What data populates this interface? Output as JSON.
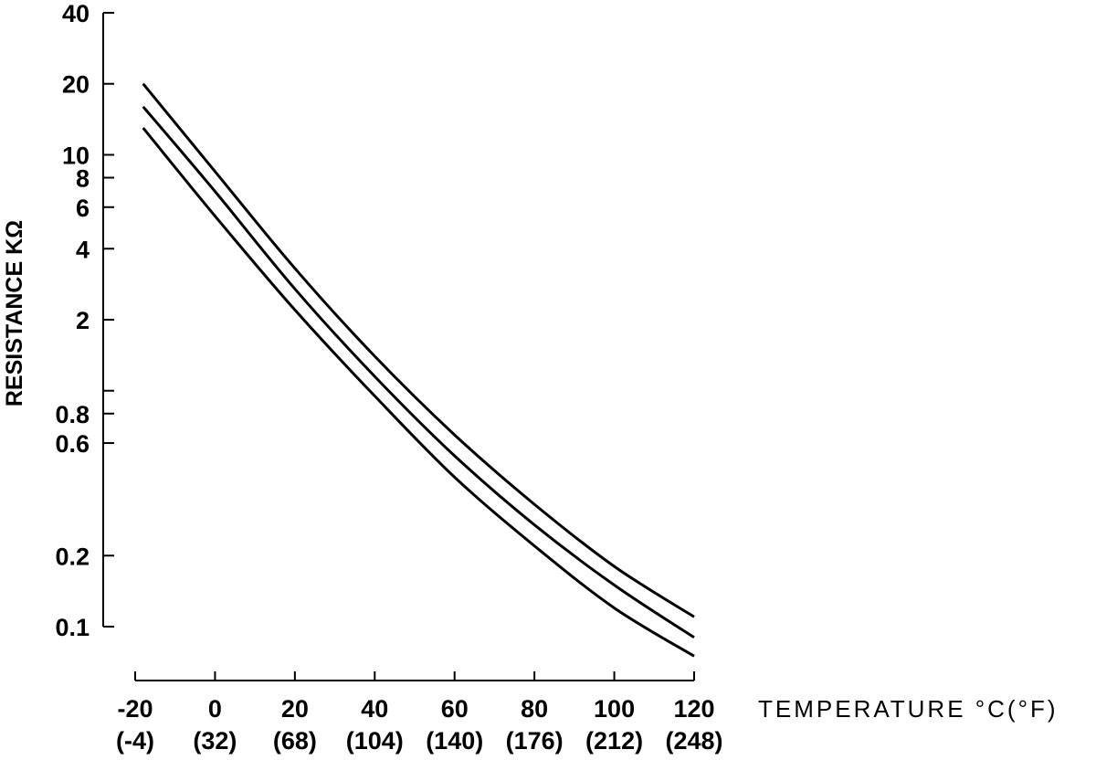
{
  "chart_data": {
    "type": "line",
    "title": "",
    "xlabel": "TEMPERATURE °C(°F)",
    "ylabel": "RESISTANCE KΩ",
    "x_scale": "linear",
    "y_scale": "log",
    "xlim": [
      -20,
      120
    ],
    "ylim": [
      0.1,
      40
    ],
    "x_ticks": [
      {
        "value": -20,
        "label": "-20",
        "sublabel": "(-4)"
      },
      {
        "value": 0,
        "label": "0",
        "sublabel": "(32)"
      },
      {
        "value": 20,
        "label": "20",
        "sublabel": "(68)"
      },
      {
        "value": 40,
        "label": "40",
        "sublabel": "(104)"
      },
      {
        "value": 60,
        "label": "60",
        "sublabel": "(140)"
      },
      {
        "value": 80,
        "label": "80",
        "sublabel": "(176)"
      },
      {
        "value": 100,
        "label": "100",
        "sublabel": "(212)"
      },
      {
        "value": 120,
        "label": "120",
        "sublabel": "(248)"
      }
    ],
    "y_ticks": [
      {
        "value": 40,
        "label": "40"
      },
      {
        "value": 20,
        "label": "20"
      },
      {
        "value": 10,
        "label": "10"
      },
      {
        "value": 8,
        "label": "8"
      },
      {
        "value": 6,
        "label": "6"
      },
      {
        "value": 4,
        "label": "4"
      },
      {
        "value": 2,
        "label": "2"
      },
      {
        "value": 1,
        "label": ""
      },
      {
        "value": 0.8,
        "label": "0.8"
      },
      {
        "value": 0.6,
        "label": "0.6"
      },
      {
        "value": 0.2,
        "label": "0.2"
      },
      {
        "value": 0.1,
        "label": "0.1"
      }
    ],
    "grid": false,
    "legend": "none",
    "series": [
      {
        "x": [
          -18,
          0,
          20,
          40,
          60,
          80,
          100,
          120
        ],
        "y": [
          20,
          8.5,
          3.3,
          1.4,
          0.65,
          0.33,
          0.18,
          0.11
        ]
      },
      {
        "x": [
          -18,
          0,
          20,
          40,
          60,
          80,
          100,
          120
        ],
        "y": [
          16,
          7.0,
          2.7,
          1.15,
          0.53,
          0.27,
          0.15,
          0.09
        ]
      },
      {
        "x": [
          -18,
          0,
          20,
          40,
          60,
          80,
          100,
          120
        ],
        "y": [
          13,
          5.5,
          2.2,
          0.95,
          0.43,
          0.22,
          0.12,
          0.075
        ]
      }
    ],
    "colors": {
      "line": "#000000",
      "background": "#ffffff"
    }
  }
}
